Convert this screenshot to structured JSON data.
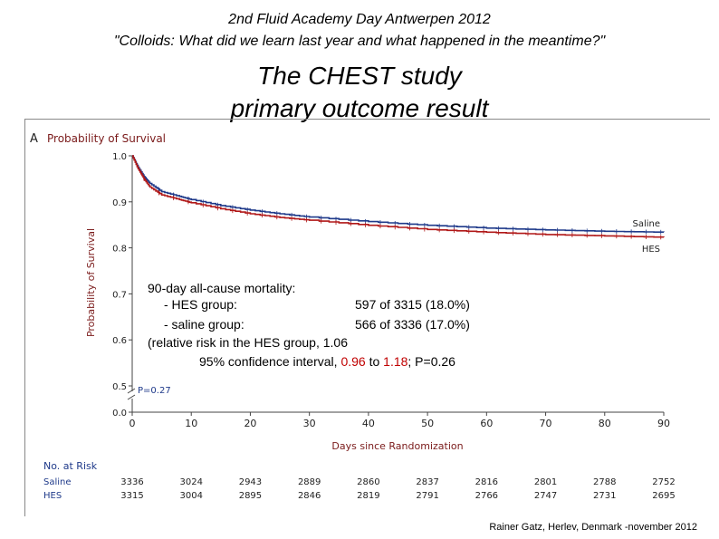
{
  "header": {
    "line1": "2nd Fluid Academy Day Antwerpen 2012",
    "line2": "\"Colloids: What did we learn last year and what happened in the meantime?\""
  },
  "title": {
    "line1": "The CHEST study",
    "line2": "primary outcome result"
  },
  "chart_data": {
    "type": "line",
    "panel_letter": "A",
    "title": "Probability of Survival",
    "xlabel": "Days since Randomization",
    "ylabel": "Probability of Survival",
    "xlim": [
      0,
      90
    ],
    "x_ticks": [
      0,
      10,
      20,
      30,
      40,
      50,
      60,
      70,
      80,
      90
    ],
    "y_ticks": [
      1.0,
      0.9,
      0.8,
      0.7,
      0.6,
      0.5
    ],
    "y_tick_labels": [
      "1.0",
      "0.9",
      "0.8",
      "0.7",
      "0.6",
      "0.5"
    ],
    "y_zero_label": "0.0",
    "grid": false,
    "annotation": "P=0.27",
    "series": [
      {
        "name": "Saline",
        "color": "#1f3a8a",
        "x": [
          0,
          1,
          2,
          3,
          5,
          8,
          10,
          15,
          20,
          25,
          30,
          40,
          50,
          60,
          70,
          80,
          90
        ],
        "y": [
          1.0,
          0.975,
          0.955,
          0.94,
          0.922,
          0.912,
          0.905,
          0.892,
          0.882,
          0.874,
          0.867,
          0.857,
          0.849,
          0.843,
          0.839,
          0.836,
          0.834
        ]
      },
      {
        "name": "HES",
        "color": "#b01818",
        "x": [
          0,
          1,
          2,
          3,
          5,
          8,
          10,
          15,
          20,
          25,
          30,
          40,
          50,
          60,
          70,
          80,
          90
        ],
        "y": [
          1.0,
          0.972,
          0.95,
          0.932,
          0.915,
          0.905,
          0.898,
          0.885,
          0.874,
          0.866,
          0.86,
          0.849,
          0.84,
          0.834,
          0.829,
          0.826,
          0.823
        ]
      }
    ],
    "risk_table": {
      "title": "No. at Risk",
      "days": [
        0,
        10,
        20,
        30,
        40,
        50,
        60,
        70,
        80,
        90
      ],
      "rows": [
        {
          "label": "Saline",
          "values": [
            "3336",
            "3024",
            "2943",
            "2889",
            "2860",
            "2837",
            "2816",
            "2801",
            "2788",
            "2752"
          ]
        },
        {
          "label": "HES",
          "values": [
            "3315",
            "3004",
            "2895",
            "2846",
            "2819",
            "2791",
            "2766",
            "2747",
            "2731",
            "2695"
          ]
        }
      ]
    }
  },
  "overlay": {
    "line1": "90-day all-cause mortality:",
    "hes_label": "- HES group:",
    "hes_value": "597 of 3315 (18.0%)",
    "saline_label": "- saline group:",
    "saline_value": "566 of 3336 (17.0%)",
    "rr_line": "(relative risk in the HES group, 1.06",
    "ci_prefix": "95% confidence interval, ",
    "ci_low": "0.96",
    "ci_to": " to ",
    "ci_high": "1.18",
    "ci_suffix": "; P=0.26"
  },
  "footer": "Rainer Gatz, Herlev, Denmark -november 2012"
}
